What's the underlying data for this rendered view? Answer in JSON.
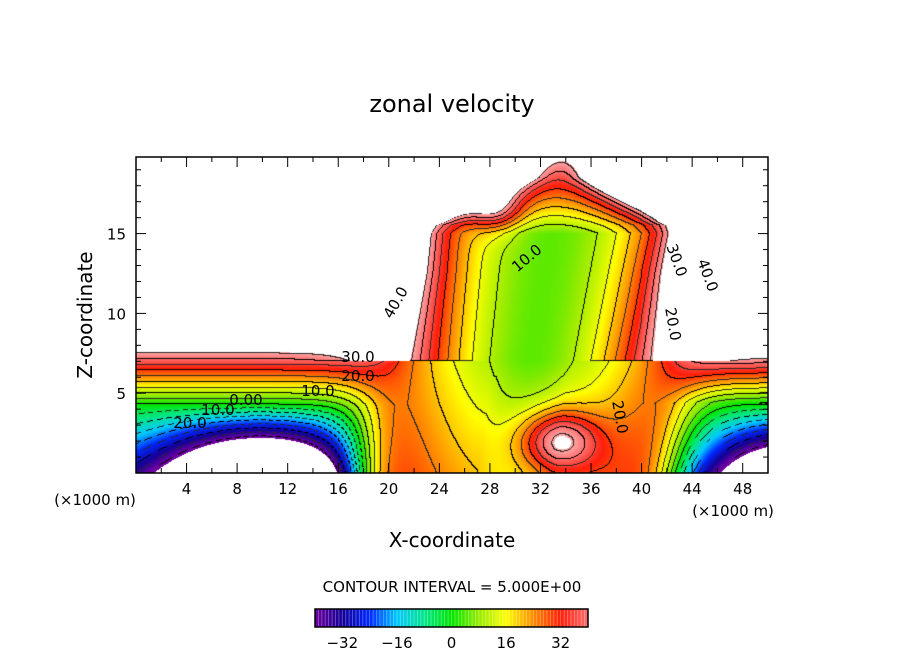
{
  "chart_data": {
    "type": "heatmap",
    "subtype": "filled contour",
    "title": "zonal velocity",
    "xlabel": "X-coordinate",
    "ylabel": "Z-coordinate",
    "x_unit": "(×1000 m)",
    "z_unit": "(×1000 m)",
    "xlim": [
      0,
      50
    ],
    "ylim": [
      0,
      19.8
    ],
    "xticks": [
      "4",
      "8",
      "12",
      "16",
      "20",
      "24",
      "28",
      "32",
      "36",
      "40",
      "44",
      "48"
    ],
    "yticks": [
      "5",
      "10",
      "15"
    ],
    "contour_interval_text": "CONTOUR INTERVAL = 5.000E+00",
    "contour_interval": 5,
    "contour_labels": [
      "40.0",
      "30.0",
      "20.0",
      "10.0",
      "0.00",
      "10.0",
      "20.0",
      "10.0",
      "30.0",
      "40.0",
      "20.0",
      "20.0"
    ],
    "colorbar": {
      "range": [
        -40,
        40
      ],
      "ticks": [
        "−32",
        "−16",
        "0",
        "16",
        "32"
      ]
    },
    "features": {
      "upper_background_max": "> 45 (unshaded)",
      "lower_left_core_min": "< -40 (unshaded)",
      "central_plume_core": 5,
      "bottom_hotspot_max": 40
    }
  }
}
